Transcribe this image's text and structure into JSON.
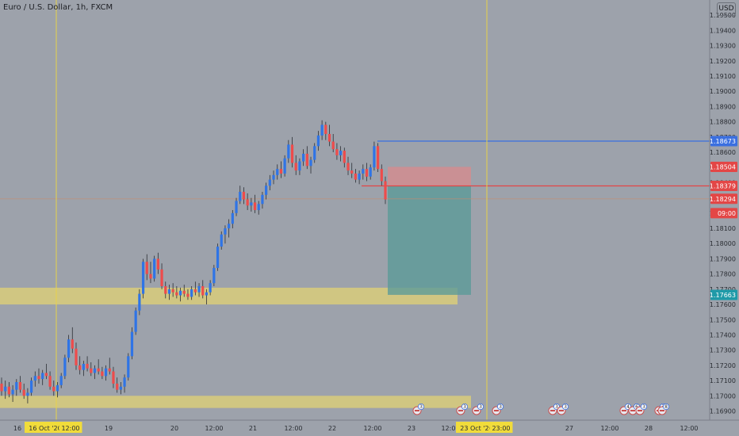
{
  "header": {
    "title": "Euro / U.S. Dollar, 1h, FXCM",
    "currency_button": "USD"
  },
  "colors": {
    "up": "#2f74e6",
    "down": "#ee4b4b",
    "zone": "#d9cc7a",
    "vline": "#e7d34a",
    "blue_line": "#3a6fe0",
    "red_line": "#e34646",
    "profit": "#5c9b98",
    "loss": "#d98a8c",
    "axis_bg": "#9da2ab"
  },
  "chart_data": {
    "type": "candlestick",
    "symbol": "EURUSD",
    "interval": "1h",
    "ylim": [
      1.1684,
      1.196
    ],
    "y_ticks": [
      "1.19500",
      "1.19400",
      "1.19300",
      "1.19200",
      "1.19100",
      "1.19000",
      "1.18900",
      "1.18800",
      "1.18700",
      "1.18600",
      "1.18500",
      "1.18400",
      "1.18300",
      "1.18200",
      "1.18100",
      "1.18000",
      "1.17900",
      "1.17800",
      "1.17700",
      "1.17600",
      "1.17500",
      "1.17400",
      "1.17300",
      "1.17200",
      "1.17100",
      "1.17000",
      "1.16900"
    ],
    "x_ticks": [
      "16",
      "16 Oct '20",
      "12:00",
      "19",
      "20",
      "12:00",
      "21",
      "12:00",
      "22",
      "12:00",
      "23",
      "12:00",
      "23 Oct '20",
      "23:00",
      "27",
      "12:00",
      "28",
      "12:00"
    ],
    "highlighted_x_ticks": [
      "16 Oct '20",
      "12:00",
      "23 Oct '20",
      "23:00"
    ],
    "price_tags": [
      {
        "label": "1.18673",
        "color": "#3a6fe0",
        "value": 1.18673
      },
      {
        "label": "1.18504",
        "color": "#e34646",
        "value": 1.18504
      },
      {
        "label": "1.18379",
        "color": "#e34646",
        "value": 1.18379
      },
      {
        "label": "1.18294",
        "color": "#e34646",
        "value": 1.18294
      },
      {
        "label": "09:00",
        "color": "#e34646",
        "value": 1.182
      },
      {
        "label": "1.17663",
        "color": "#1f9aa8",
        "value": 1.17663
      }
    ],
    "event_badges": [
      "3",
      "3",
      "3",
      "3",
      "3",
      "3",
      "4",
      "6",
      "3",
      "3",
      "8"
    ],
    "zones": [
      {
        "low": 1.176,
        "high": 1.1771
      },
      {
        "low": 1.1692,
        "high": 1.17
      }
    ],
    "horizontal_lines": [
      {
        "value": 1.18673,
        "color": "blue"
      },
      {
        "value": 1.18379,
        "color": "red"
      },
      {
        "value": 1.18294,
        "color": "faint"
      }
    ],
    "position": {
      "stop": 1.18504,
      "entry": 1.18379,
      "target": 1.17663
    },
    "candles": [
      [
        1.1708,
        1.1712,
        1.17,
        1.1703
      ],
      [
        1.1703,
        1.171,
        1.1698,
        1.1706
      ],
      [
        1.1706,
        1.1709,
        1.1699,
        1.1701
      ],
      [
        1.1701,
        1.1707,
        1.1696,
        1.1704
      ],
      [
        1.1704,
        1.1711,
        1.17,
        1.1709
      ],
      [
        1.1709,
        1.1713,
        1.1702,
        1.1704
      ],
      [
        1.1704,
        1.1708,
        1.1698,
        1.17
      ],
      [
        1.17,
        1.1705,
        1.1695,
        1.1702
      ],
      [
        1.1702,
        1.1712,
        1.17,
        1.171
      ],
      [
        1.171,
        1.1716,
        1.1706,
        1.1713
      ],
      [
        1.1713,
        1.1718,
        1.1708,
        1.1711
      ],
      [
        1.1711,
        1.1717,
        1.1707,
        1.1715
      ],
      [
        1.1715,
        1.1721,
        1.1711,
        1.1713
      ],
      [
        1.1713,
        1.1716,
        1.1704,
        1.1706
      ],
      [
        1.1706,
        1.171,
        1.17,
        1.1703
      ],
      [
        1.1703,
        1.1709,
        1.1699,
        1.1707
      ],
      [
        1.1707,
        1.1715,
        1.1705,
        1.1713
      ],
      [
        1.1713,
        1.1727,
        1.1711,
        1.1725
      ],
      [
        1.1725,
        1.174,
        1.1722,
        1.1737
      ],
      [
        1.1737,
        1.1745,
        1.1728,
        1.1731
      ],
      [
        1.1731,
        1.1735,
        1.1717,
        1.172
      ],
      [
        1.172,
        1.1726,
        1.1714,
        1.1717
      ],
      [
        1.1717,
        1.1723,
        1.1713,
        1.1721
      ],
      [
        1.1721,
        1.1726,
        1.1716,
        1.1718
      ],
      [
        1.1718,
        1.1722,
        1.1713,
        1.1715
      ],
      [
        1.1715,
        1.172,
        1.1711,
        1.1718
      ],
      [
        1.1718,
        1.1724,
        1.1714,
        1.1716
      ],
      [
        1.1716,
        1.1719,
        1.1711,
        1.1713
      ],
      [
        1.1713,
        1.172,
        1.171,
        1.1718
      ],
      [
        1.1718,
        1.1725,
        1.1714,
        1.1716
      ],
      [
        1.1716,
        1.1719,
        1.1705,
        1.1708
      ],
      [
        1.1708,
        1.1712,
        1.1702,
        1.1704
      ],
      [
        1.1704,
        1.1709,
        1.1701,
        1.1706
      ],
      [
        1.1706,
        1.1714,
        1.1702,
        1.1712
      ],
      [
        1.1712,
        1.1728,
        1.171,
        1.1726
      ],
      [
        1.1726,
        1.1745,
        1.1724,
        1.1742
      ],
      [
        1.1742,
        1.1758,
        1.174,
        1.1756
      ],
      [
        1.1756,
        1.177,
        1.1753,
        1.1767
      ],
      [
        1.1767,
        1.179,
        1.1764,
        1.1788
      ],
      [
        1.1788,
        1.1793,
        1.1776,
        1.178
      ],
      [
        1.178,
        1.1788,
        1.1774,
        1.1777
      ],
      [
        1.1777,
        1.1792,
        1.1775,
        1.179
      ],
      [
        1.179,
        1.1794,
        1.178,
        1.1783
      ],
      [
        1.1783,
        1.1787,
        1.177,
        1.1772
      ],
      [
        1.1772,
        1.1775,
        1.1764,
        1.1767
      ],
      [
        1.1767,
        1.1773,
        1.1763,
        1.177
      ],
      [
        1.177,
        1.1774,
        1.1765,
        1.1768
      ],
      [
        1.1768,
        1.1772,
        1.1764,
        1.1766
      ],
      [
        1.1766,
        1.1771,
        1.1762,
        1.1769
      ],
      [
        1.1769,
        1.1773,
        1.1765,
        1.1767
      ],
      [
        1.1767,
        1.177,
        1.1763,
        1.1765
      ],
      [
        1.1765,
        1.1772,
        1.1763,
        1.177
      ],
      [
        1.177,
        1.1775,
        1.1766,
        1.1768
      ],
      [
        1.1768,
        1.1774,
        1.1765,
        1.1772
      ],
      [
        1.1772,
        1.1776,
        1.1764,
        1.1766
      ],
      [
        1.1766,
        1.177,
        1.176,
        1.1768
      ],
      [
        1.1768,
        1.1776,
        1.1766,
        1.1774
      ],
      [
        1.1774,
        1.1786,
        1.1772,
        1.1784
      ],
      [
        1.1784,
        1.18,
        1.1782,
        1.1798
      ],
      [
        1.1798,
        1.1808,
        1.1796,
        1.1806
      ],
      [
        1.1806,
        1.1812,
        1.18,
        1.181
      ],
      [
        1.181,
        1.1816,
        1.1804,
        1.1813
      ],
      [
        1.1813,
        1.1822,
        1.181,
        1.182
      ],
      [
        1.182,
        1.183,
        1.1818,
        1.1828
      ],
      [
        1.1828,
        1.1838,
        1.1826,
        1.1834
      ],
      [
        1.1834,
        1.1837,
        1.1826,
        1.1829
      ],
      [
        1.1829,
        1.1833,
        1.1822,
        1.1825
      ],
      [
        1.1825,
        1.183,
        1.1821,
        1.1827
      ],
      [
        1.1827,
        1.1832,
        1.182,
        1.1822
      ],
      [
        1.1822,
        1.1828,
        1.1819,
        1.1826
      ],
      [
        1.1826,
        1.1834,
        1.1823,
        1.1832
      ],
      [
        1.1832,
        1.184,
        1.1829,
        1.1838
      ],
      [
        1.1838,
        1.1845,
        1.1835,
        1.1842
      ],
      [
        1.1842,
        1.1848,
        1.1839,
        1.1845
      ],
      [
        1.1845,
        1.1852,
        1.1842,
        1.1849
      ],
      [
        1.1849,
        1.1854,
        1.1843,
        1.1846
      ],
      [
        1.1846,
        1.1858,
        1.1844,
        1.1856
      ],
      [
        1.1856,
        1.1868,
        1.1853,
        1.1865
      ],
      [
        1.1865,
        1.187,
        1.185,
        1.1853
      ],
      [
        1.1853,
        1.1858,
        1.1845,
        1.1848
      ],
      [
        1.1848,
        1.1856,
        1.1845,
        1.1854
      ],
      [
        1.1854,
        1.1862,
        1.1851,
        1.1859
      ],
      [
        1.1859,
        1.1864,
        1.1849,
        1.1851
      ],
      [
        1.1851,
        1.1857,
        1.1846,
        1.1855
      ],
      [
        1.1855,
        1.1866,
        1.1853,
        1.1864
      ],
      [
        1.1864,
        1.1874,
        1.1861,
        1.1871
      ],
      [
        1.1871,
        1.1881,
        1.1868,
        1.1878
      ],
      [
        1.1878,
        1.188,
        1.1868,
        1.1872
      ],
      [
        1.1872,
        1.1878,
        1.1864,
        1.1867
      ],
      [
        1.1867,
        1.1872,
        1.186,
        1.1862
      ],
      [
        1.1862,
        1.1866,
        1.1855,
        1.1858
      ],
      [
        1.1858,
        1.1864,
        1.1854,
        1.1861
      ],
      [
        1.1861,
        1.1863,
        1.185,
        1.1853
      ],
      [
        1.1853,
        1.1857,
        1.1845,
        1.1848
      ],
      [
        1.1848,
        1.1853,
        1.1843,
        1.1846
      ],
      [
        1.1846,
        1.1849,
        1.184,
        1.1842
      ],
      [
        1.1842,
        1.1848,
        1.1839,
        1.1846
      ],
      [
        1.1846,
        1.1852,
        1.1842,
        1.1849
      ],
      [
        1.1849,
        1.1853,
        1.1841,
        1.1844
      ],
      [
        1.1844,
        1.1852,
        1.1842,
        1.185
      ],
      [
        1.185,
        1.1867,
        1.1848,
        1.1864
      ],
      [
        1.1864,
        1.1866,
        1.1847,
        1.1849
      ],
      [
        1.1849,
        1.1852,
        1.1838,
        1.1841
      ],
      [
        1.1841,
        1.1844,
        1.1826,
        1.1829
      ]
    ],
    "title": "Euro / U.S. Dollar, 1h, FXCM"
  }
}
